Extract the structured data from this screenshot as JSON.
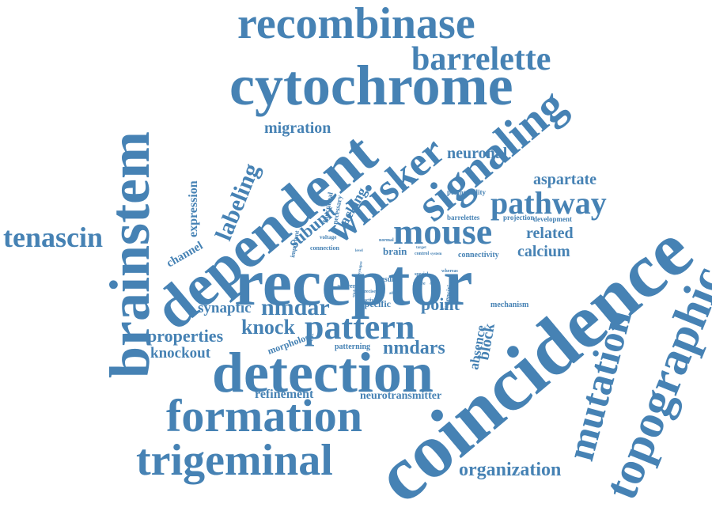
{
  "word_color": "#4682b4",
  "background": "#ffffff",
  "words": [
    "recombinase",
    "barrelette",
    "cytochrome",
    "brainstem",
    "dependent",
    "whisker",
    "signaling",
    "coincidence",
    "topographic",
    "receptor",
    "detection",
    "formation",
    "trigeminal",
    "mutation",
    "tenascin",
    "pattern",
    "mouse",
    "pathway",
    "nmdar",
    "nmdars",
    "knock",
    "knockout",
    "properties",
    "synaptic",
    "labeling",
    "migration",
    "neuronal",
    "aspartate",
    "expression",
    "channel",
    "subunit",
    "lacking",
    "block",
    "absence",
    "point",
    "organization",
    "refinement",
    "neurotransmitter",
    "related",
    "calcium",
    "brain",
    "specific",
    "mechanism",
    "morphology",
    "patterning",
    "connectivity",
    "result",
    "barrelettes",
    "projection",
    "development",
    "permeability",
    "functional",
    "necessary",
    "important",
    "connection",
    "insensitive",
    "afferent",
    "normal",
    "voltage",
    "special",
    "whereas",
    "activity",
    "control",
    "native",
    "precise",
    "level",
    "target",
    "system",
    "synapse",
    "affect",
    "study",
    "input"
  ]
}
